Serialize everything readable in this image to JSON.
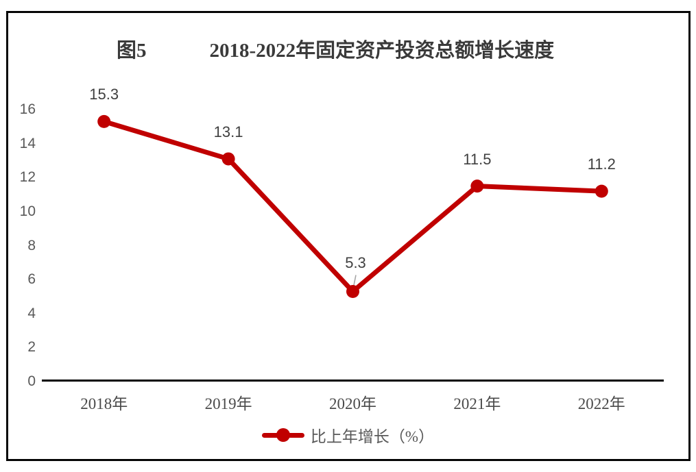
{
  "figure": {
    "background": "#ffffff",
    "frame_color": "#060606"
  },
  "chart_data": {
    "type": "line",
    "title_prefix": "图5",
    "title": "2018-2022年固定资产投资总额增长速度",
    "categories": [
      "2018年",
      "2019年",
      "2020年",
      "2021年",
      "2022年"
    ],
    "series": [
      {
        "name": "比上年增长（%）",
        "values": [
          15.3,
          13.1,
          5.3,
          11.5,
          11.2
        ],
        "color": "#c00000",
        "marker": "circle"
      }
    ],
    "data_labels": [
      "15.3",
      "13.1",
      "5.3",
      "11.5",
      "11.2"
    ],
    "xlabel": "",
    "ylabel": "",
    "ylim": [
      0,
      16
    ],
    "yticks": [
      0,
      2,
      4,
      6,
      8,
      10,
      12,
      14,
      16
    ],
    "grid": false,
    "legend_position": "bottom",
    "legend_entries": [
      "比上年增长（%）"
    ],
    "label_with_leader_line": "5.3"
  },
  "colors": {
    "line": "#c00000",
    "axis": "#000000",
    "tick_label": "#595959",
    "data_label": "#404040",
    "title": "#3a3a3a",
    "leader_line": "#a6a6a6"
  }
}
